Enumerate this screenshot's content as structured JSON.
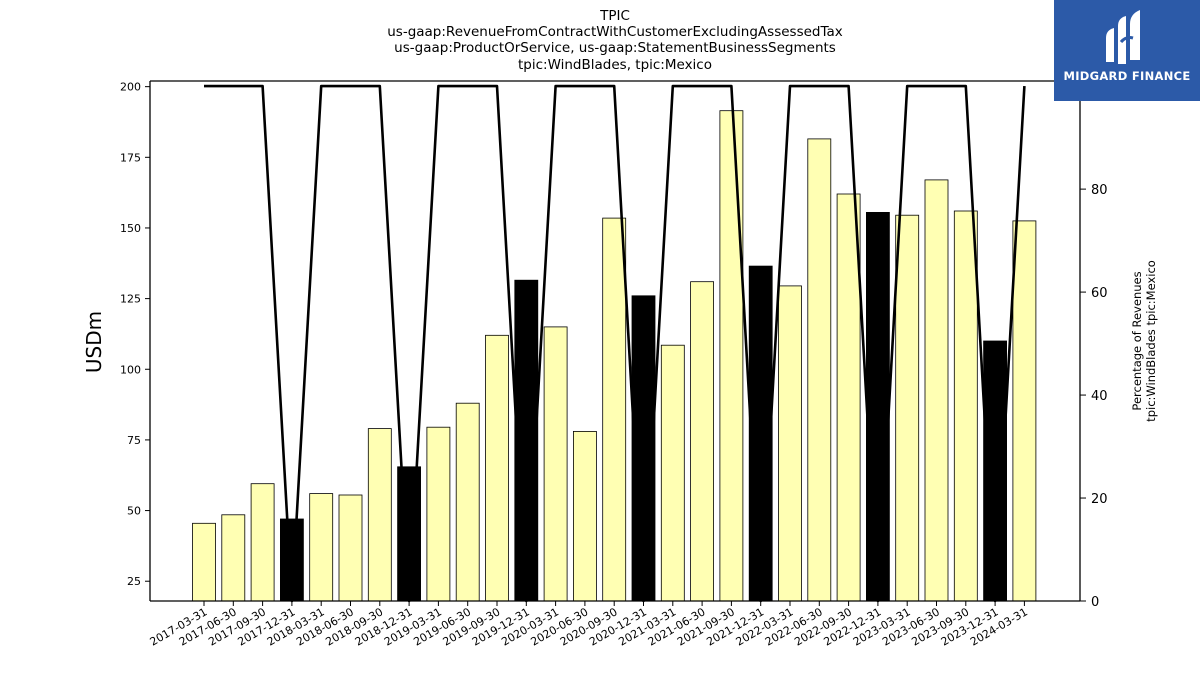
{
  "chart_data": {
    "type": "bar",
    "title_lines": [
      "TPIC",
      "us-gaap:RevenueFromContractWithCustomerExcludingAssessedTax",
      "us-gaap:ProductOrService, us-gaap:StatementBusinessSegments",
      "tpic:WindBlades, tpic:Mexico"
    ],
    "ylabel": "USDm",
    "ylabel_right": [
      "Percentage of Revenues",
      "tpic:WindBlades tpic:Mexico"
    ],
    "ylim": [
      18,
      202
    ],
    "ylim_right": [
      0,
      101
    ],
    "yticks": [
      25,
      50,
      75,
      100,
      125,
      150,
      175,
      200
    ],
    "yticks_right": [
      0,
      20,
      40,
      60,
      80,
      100
    ],
    "categories": [
      "2017-03-31",
      "2017-06-30",
      "2017-09-30",
      "2017-12-31",
      "2018-03-31",
      "2018-06-30",
      "2018-09-30",
      "2018-12-31",
      "2019-03-31",
      "2019-06-30",
      "2019-09-30",
      "2019-12-31",
      "2020-03-31",
      "2020-06-30",
      "2020-09-30",
      "2020-12-31",
      "2021-03-31",
      "2021-06-30",
      "2021-09-30",
      "2021-12-31",
      "2022-03-31",
      "2022-06-30",
      "2022-09-30",
      "2022-12-31",
      "2023-03-31",
      "2023-06-30",
      "2023-09-30",
      "2023-12-31",
      "2024-03-31"
    ],
    "series": [
      {
        "type": "bar",
        "values": [
          45.5,
          48.5,
          59.5,
          47,
          56,
          55.5,
          79,
          65.5,
          79.5,
          88,
          112,
          131.5,
          115,
          78,
          153.5,
          126,
          108.5,
          131,
          191.5,
          136.5,
          129.5,
          181.5,
          162,
          155.5,
          154.5,
          167,
          156,
          110,
          152.5
        ],
        "highlight": [
          false,
          false,
          false,
          true,
          false,
          false,
          false,
          true,
          false,
          false,
          false,
          true,
          false,
          false,
          false,
          true,
          false,
          false,
          false,
          true,
          false,
          false,
          false,
          true,
          false,
          false,
          false,
          true,
          false
        ]
      },
      {
        "type": "line",
        "axis": "right",
        "values": [
          100,
          100,
          100,
          0,
          100,
          100,
          100,
          0,
          100,
          100,
          100,
          0,
          100,
          100,
          100,
          0,
          100,
          100,
          100,
          0,
          100,
          100,
          100,
          0,
          100,
          100,
          100,
          0,
          100
        ]
      }
    ],
    "colors": {
      "bar": "#ffffb3",
      "bar_highlight": "#000000",
      "line": "#000000",
      "edge": "#000000"
    },
    "grid": false
  },
  "logo": {
    "text": "MIDGARD FINANCE",
    "background": "#2c5aa8"
  }
}
